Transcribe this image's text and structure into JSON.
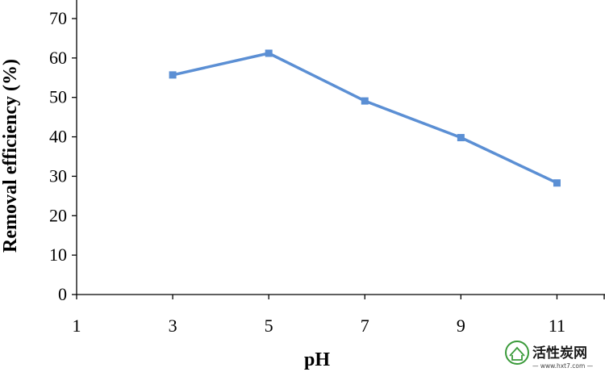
{
  "chart_data": {
    "type": "line",
    "title": "",
    "xlabel": "pH",
    "ylabel": "Removal efficiency (%)",
    "x_ticks": [
      "1",
      "3",
      "5",
      "7",
      "9",
      "11"
    ],
    "y_ticks": [
      "0",
      "10",
      "20",
      "30",
      "40",
      "50",
      "60",
      "70"
    ],
    "xlim": [
      1,
      12
    ],
    "ylim": [
      0,
      70
    ],
    "grid": false,
    "legend": "none",
    "series": [
      {
        "x": [
          3,
          5,
          7,
          9,
          11
        ],
        "values": [
          55.7,
          61.2,
          49.1,
          39.8,
          28.3
        ],
        "color": "#5b8fd4",
        "marker": "square"
      }
    ]
  },
  "watermark": {
    "text": "活性炭网",
    "url": "— www.hxt7.com —",
    "color": "#3a9a3a"
  }
}
